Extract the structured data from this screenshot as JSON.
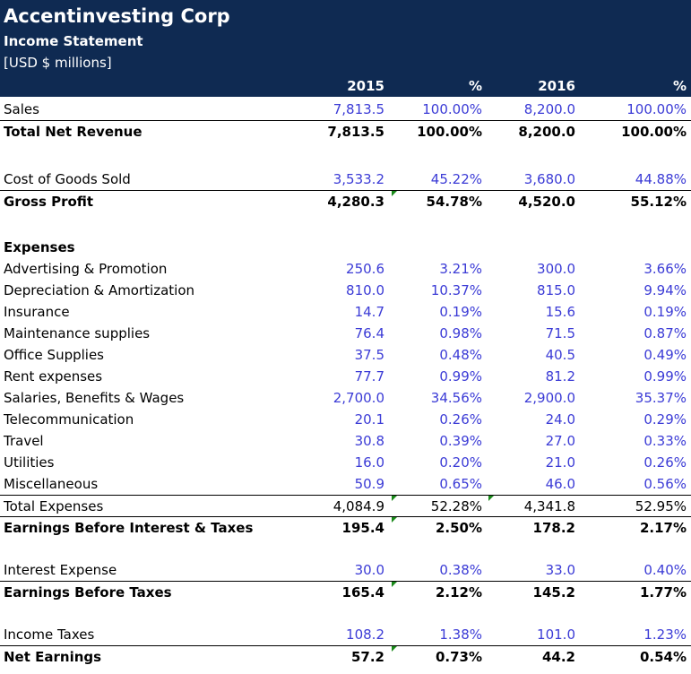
{
  "header": {
    "company": "Accentinvesting Corp",
    "statement": "Income Statement",
    "units": "[USD $ millions]"
  },
  "columns": [
    "2015",
    "%",
    "2016",
    "%"
  ],
  "rows": [
    {
      "label": "Sales",
      "v": [
        "7,813.5",
        "100.00%",
        "8,200.0",
        "100.00%"
      ]
    },
    {
      "label": "Total Net Revenue",
      "v": [
        "7,813.5",
        "100.00%",
        "8,200.0",
        "100.00%"
      ]
    },
    {
      "label": "Cost of Goods Sold",
      "v": [
        "3,533.2",
        "45.22%",
        "3,680.0",
        "44.88%"
      ]
    },
    {
      "label": "Gross Profit",
      "v": [
        "4,280.3",
        "54.78%",
        "4,520.0",
        "55.12%"
      ]
    },
    {
      "label": "Expenses",
      "v": [
        "",
        "",
        "",
        ""
      ]
    },
    {
      "label": "Advertising & Promotion",
      "v": [
        "250.6",
        "3.21%",
        "300.0",
        "3.66%"
      ]
    },
    {
      "label": "Depreciation & Amortization",
      "v": [
        "810.0",
        "10.37%",
        "815.0",
        "9.94%"
      ]
    },
    {
      "label": "Insurance",
      "v": [
        "14.7",
        "0.19%",
        "15.6",
        "0.19%"
      ]
    },
    {
      "label": "Maintenance supplies",
      "v": [
        "76.4",
        "0.98%",
        "71.5",
        "0.87%"
      ]
    },
    {
      "label": "Office Supplies",
      "v": [
        "37.5",
        "0.48%",
        "40.5",
        "0.49%"
      ]
    },
    {
      "label": "Rent expenses",
      "v": [
        "77.7",
        "0.99%",
        "81.2",
        "0.99%"
      ]
    },
    {
      "label": "Salaries, Benefits & Wages",
      "v": [
        "2,700.0",
        "34.56%",
        "2,900.0",
        "35.37%"
      ]
    },
    {
      "label": "Telecommunication",
      "v": [
        "20.1",
        "0.26%",
        "24.0",
        "0.29%"
      ]
    },
    {
      "label": "Travel",
      "v": [
        "30.8",
        "0.39%",
        "27.0",
        "0.33%"
      ]
    },
    {
      "label": "Utilities",
      "v": [
        "16.0",
        "0.20%",
        "21.0",
        "0.26%"
      ]
    },
    {
      "label": "Miscellaneous",
      "v": [
        "50.9",
        "0.65%",
        "46.0",
        "0.56%"
      ]
    },
    {
      "label": "Total Expenses",
      "v": [
        "4,084.9",
        "52.28%",
        "4,341.8",
        "52.95%"
      ]
    },
    {
      "label": "Earnings Before Interest & Taxes",
      "v": [
        "195.4",
        "2.50%",
        "178.2",
        "2.17%"
      ]
    },
    {
      "label": "Interest Expense",
      "v": [
        "30.0",
        "0.38%",
        "33.0",
        "0.40%"
      ]
    },
    {
      "label": "Earnings Before Taxes",
      "v": [
        "165.4",
        "2.12%",
        "145.2",
        "1.77%"
      ]
    },
    {
      "label": "Income Taxes",
      "v": [
        "108.2",
        "1.38%",
        "101.0",
        "1.23%"
      ]
    },
    {
      "label": "Net Earnings",
      "v": [
        "57.2",
        "0.73%",
        "44.2",
        "0.54%"
      ]
    }
  ],
  "colors": {
    "banner": "#0f2a52",
    "input_blue": "#3b3bd6",
    "flag_green": "#1a8a1a"
  }
}
